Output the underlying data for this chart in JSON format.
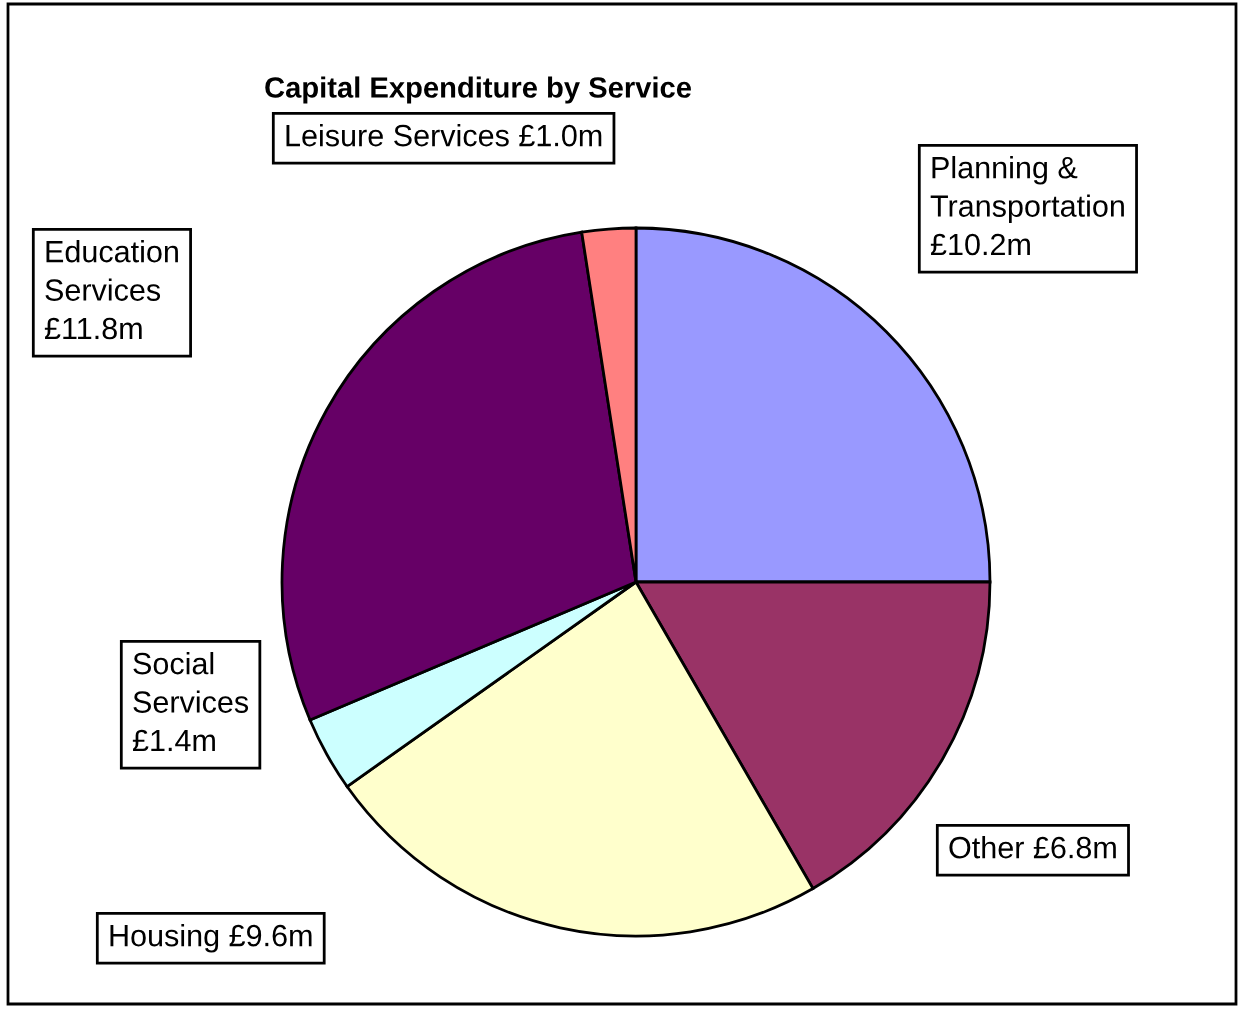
{
  "chart_data": {
    "type": "pie",
    "title": "Capital Expenditure by Service",
    "categories": [
      "Planning &\nTransportation",
      "Other",
      "Housing",
      "Social\nServices",
      "Education\nServices",
      "Leisure Services"
    ],
    "values": [
      10.2,
      6.8,
      9.6,
      1.4,
      11.8,
      1.0
    ],
    "value_labels": [
      "£10.2m",
      "£6.8m",
      "£9.6m",
      "£1.4m",
      "£11.8m",
      "£1.0m"
    ],
    "colors": [
      "#9999ff",
      "#993366",
      "#ffffcc",
      "#ccffff",
      "#660066",
      "#ff8080"
    ],
    "legend": false
  }
}
